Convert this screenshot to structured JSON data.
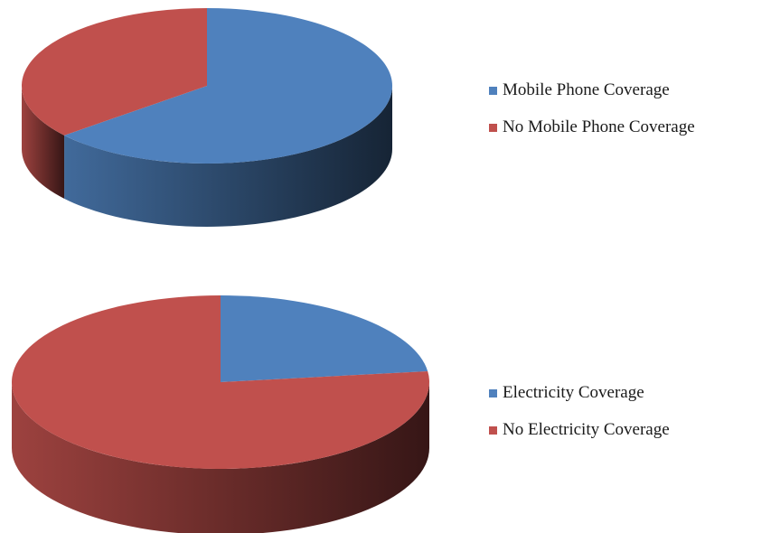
{
  "colors": {
    "blue": "#4f81bd",
    "red": "#c0504d"
  },
  "chart_data": [
    {
      "type": "pie",
      "style": "3d",
      "title": "",
      "categories": [
        "Mobile Phone Coverage",
        "No Mobile Phone Coverage"
      ],
      "values": [
        64,
        36
      ],
      "colors": [
        "#4f81bd",
        "#c0504d"
      ],
      "legend_position": "right"
    },
    {
      "type": "pie",
      "style": "3d",
      "title": "",
      "categories": [
        "Electricity Coverage",
        "No Electricity Coverage"
      ],
      "values": [
        23,
        77
      ],
      "colors": [
        "#4f81bd",
        "#c0504d"
      ],
      "legend_position": "right"
    }
  ]
}
